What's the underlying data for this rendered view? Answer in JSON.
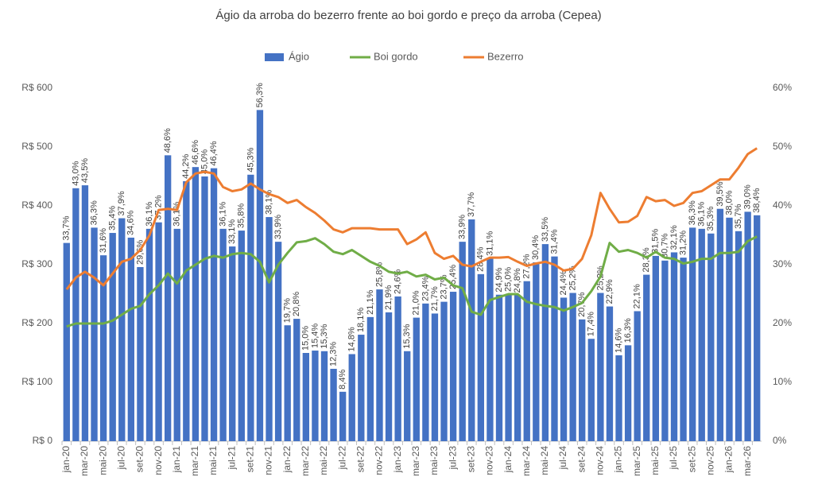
{
  "chart_data": {
    "type": "bar_line",
    "title": "Ágio da arroba do bezerro frente ao boi gordo e preço da arroba (Cepea)",
    "categories": [
      "jan-20",
      null,
      "mar-20",
      null,
      "mai-20",
      null,
      "jul-20",
      null,
      "set-20",
      null,
      "nov-20",
      null,
      "jan-21",
      null,
      "mar-21",
      null,
      "mai-21",
      null,
      "jul-21",
      null,
      "set-21",
      null,
      "nov-21",
      null,
      "jan-22",
      null,
      "mar-22",
      null,
      "mai-22",
      null,
      "jul-22",
      null,
      "set-22",
      null,
      "nov-22",
      null,
      "jan-23",
      null,
      "mar-23",
      null,
      "mai-23",
      null,
      "jul-23",
      null,
      "set-23",
      null,
      "nov-23",
      null,
      "jan-24",
      null,
      "mar-24",
      null,
      "mai-24",
      null,
      "jul-24",
      null,
      "set-24",
      null,
      "nov-24",
      null,
      "jan-25",
      null,
      "mar-25",
      null,
      "mai-25",
      null,
      "jul-25",
      null,
      "set-25",
      null,
      "nov-25",
      null,
      "jan-26",
      null,
      "mar-26",
      null
    ],
    "ylim": [
      0,
      600
    ],
    "yticks": [
      {
        "value": 0,
        "label": "R$ 0"
      },
      {
        "value": 100,
        "label": "R$ 100"
      },
      {
        "value": 200,
        "label": "R$ 200"
      },
      {
        "value": 300,
        "label": "R$ 300"
      },
      {
        "value": 400,
        "label": "R$ 400"
      },
      {
        "value": 500,
        "label": "R$ 500"
      },
      {
        "value": 600,
        "label": "R$ 600"
      }
    ],
    "y2lim": [
      0,
      60
    ],
    "y2ticks": [
      {
        "value": 0,
        "label": "0%"
      },
      {
        "value": 10,
        "label": "10%"
      },
      {
        "value": 20,
        "label": "20%"
      },
      {
        "value": 30,
        "label": "30%"
      },
      {
        "value": 40,
        "label": "40%"
      },
      {
        "value": 50,
        "label": "50%"
      },
      {
        "value": 60,
        "label": "60%"
      }
    ],
    "legend": "top",
    "series": [
      {
        "name": "Ágio",
        "type": "bar",
        "axis": "y2",
        "color": "#4472c4",
        "values": [
          33.7,
          43.0,
          43.5,
          36.3,
          31.6,
          35.4,
          37.9,
          34.6,
          29.6,
          36.1,
          37.2,
          48.6,
          36.1,
          44.2,
          46.6,
          45.0,
          46.4,
          36.1,
          33.1,
          35.8,
          45.3,
          56.3,
          38.1,
          33.9,
          19.7,
          20.8,
          15.0,
          15.4,
          15.3,
          12.3,
          8.4,
          14.8,
          18.1,
          21.1,
          25.8,
          21.9,
          24.6,
          15.3,
          21.0,
          23.4,
          21.7,
          23.7,
          25.4,
          33.9,
          37.7,
          28.4,
          31.1,
          24.9,
          25.0,
          24.8,
          27.2,
          30.4,
          33.5,
          31.4,
          24.4,
          25.2,
          20.7,
          17.4,
          25.2,
          22.9,
          14.6,
          16.3,
          22.1,
          28.3,
          31.5,
          30.7,
          32.1,
          31.2,
          36.3,
          36.1,
          35.3,
          39.5,
          38.0,
          35.7,
          39.0,
          38.4
        ],
        "value_labels": [
          "33,7%",
          "43,0%",
          "43,5%",
          "36,3%",
          "31,6%",
          "35,4%",
          "37,9%",
          "34,6%",
          "29,6%",
          "36,1%",
          "37,2%",
          "48,6%",
          "36,1%",
          "44,2%",
          "46,6%",
          "45,0%",
          "46,4%",
          "36,1%",
          "33,1%",
          "35,8%",
          "45,3%",
          "56,3%",
          "38,1%",
          "33,9%",
          "19,7%",
          "20,8%",
          "15,0%",
          "15,4%",
          "15,3%",
          "12,3%",
          "8,4%",
          "14,8%",
          "18,1%",
          "21,1%",
          "25,8%",
          "21,9%",
          "24,6%",
          "15,3%",
          "21,0%",
          "23,4%",
          "21,7%",
          "23,7%",
          "25,4%",
          "33,9%",
          "37,7%",
          "28,4%",
          "31,1%",
          "24,9%",
          "25,0%",
          "24,8%",
          "27,2%",
          "30,4%",
          "33,5%",
          "31,4%",
          "24,4%",
          "25,2%",
          "20,7%",
          "17,4%",
          "25,2%",
          "22,9%",
          "14,6%",
          "16,3%",
          "22,1%",
          "28,3%",
          "31,5%",
          "30,7%",
          "32,1%",
          "31,2%",
          "36,3%",
          "36,1%",
          "35,3%",
          "39,5%",
          "38,0%",
          "35,7%",
          "39,0%",
          "38,4%"
        ]
      },
      {
        "name": "Boi gordo",
        "type": "line",
        "color": "#70ad47",
        "values": [
          195,
          200,
          200,
          200,
          200,
          205,
          215,
          225,
          230,
          250,
          265,
          285,
          268,
          290,
          300,
          310,
          315,
          312,
          318,
          320,
          318,
          305,
          270,
          300,
          320,
          338,
          340,
          345,
          335,
          322,
          318,
          325,
          315,
          305,
          298,
          288,
          285,
          288,
          280,
          283,
          275,
          278,
          265,
          260,
          220,
          215,
          240,
          245,
          250,
          250,
          237,
          233,
          230,
          228,
          222,
          228,
          235,
          255,
          280,
          337,
          322,
          325,
          320,
          312,
          322,
          312,
          310,
          302,
          305,
          310,
          310,
          320,
          320,
          322,
          340,
          348
        ]
      },
      {
        "name": "Bezerro",
        "type": "line",
        "color": "#ed7d31",
        "values": [
          258,
          278,
          288,
          278,
          265,
          285,
          305,
          310,
          325,
          350,
          393,
          395,
          393,
          440,
          455,
          458,
          455,
          432,
          425,
          428,
          438,
          428,
          420,
          415,
          405,
          410,
          398,
          388,
          375,
          360,
          355,
          362,
          362,
          362,
          360,
          360,
          360,
          335,
          343,
          355,
          320,
          310,
          315,
          300,
          297,
          305,
          312,
          312,
          313,
          305,
          298,
          302,
          305,
          300,
          290,
          293,
          310,
          350,
          422,
          395,
          372,
          373,
          383,
          415,
          408,
          410,
          400,
          405,
          422,
          425,
          435,
          445,
          445,
          465,
          488,
          498
        ]
      }
    ]
  }
}
